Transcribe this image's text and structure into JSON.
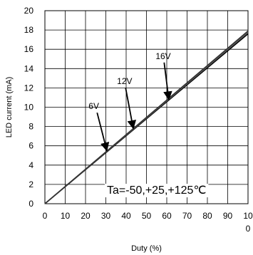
{
  "chart_data": {
    "type": "line",
    "xlabel": "Duty (%)",
    "ylabel": "LED current (mA)",
    "xlim": [
      0,
      100
    ],
    "ylim": [
      0,
      20
    ],
    "x_ticks": [
      "0",
      "10",
      "20",
      "30",
      "40",
      "50",
      "60",
      "70",
      "80",
      "90",
      "10\n0"
    ],
    "y_ticks": [
      "0",
      "2",
      "4",
      "6",
      "8",
      "10",
      "12",
      "14",
      "16",
      "18",
      "20"
    ],
    "grid": true,
    "series": [
      {
        "name": "6V",
        "x": [
          0,
          100
        ],
        "y": [
          0,
          17.6
        ],
        "color": "#000000"
      },
      {
        "name": "12V",
        "x": [
          0,
          100
        ],
        "y": [
          0,
          17.75
        ],
        "color": "#555555"
      },
      {
        "name": "16V",
        "x": [
          0,
          100
        ],
        "y": [
          0,
          17.9
        ],
        "color": "#333333"
      }
    ],
    "annotations": [
      {
        "text": "6V",
        "label_at": [
          21.5,
          9.8
        ],
        "arrow_to": [
          30.5,
          5.5
        ]
      },
      {
        "text": "12V",
        "label_at": [
          35.5,
          12.4
        ],
        "arrow_to": [
          43.5,
          7.8
        ]
      },
      {
        "text": "16V",
        "label_at": [
          54.5,
          15.0
        ],
        "arrow_to": [
          61.0,
          10.8
        ]
      }
    ],
    "condition_text": "Ta=-50,+25,+125℃"
  }
}
